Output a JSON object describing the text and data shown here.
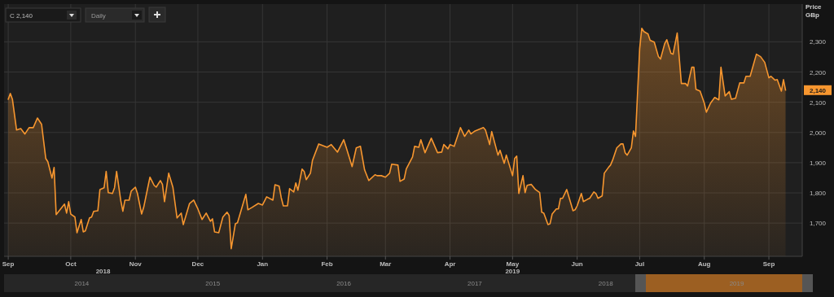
{
  "chart_data": {
    "type": "area",
    "ylabel": "Price GBp",
    "xlim": [
      "2018-08-30",
      "2019-09-17"
    ],
    "xticks": [
      {
        "value": "2018-09-01",
        "label": "Sep"
      },
      {
        "value": "2018-10-01",
        "label": "Oct"
      },
      {
        "value": "2018-11-01",
        "label": "Nov"
      },
      {
        "value": "2018-12-01",
        "label": "Dec"
      },
      {
        "value": "2019-01-01",
        "label": "Jan"
      },
      {
        "value": "2019-02-01",
        "label": "Feb"
      },
      {
        "value": "2019-03-01",
        "label": "Mar"
      },
      {
        "value": "2019-04-01",
        "label": "Apr"
      },
      {
        "value": "2019-05-01",
        "label": "May"
      },
      {
        "value": "2019-06-01",
        "label": "Jun"
      },
      {
        "value": "2019-07-01",
        "label": "Jul"
      },
      {
        "value": "2019-08-01",
        "label": "Aug"
      },
      {
        "value": "2019-09-01",
        "label": "Sep"
      }
    ],
    "ylim": [
      1590,
      2425
    ],
    "yticks": [
      {
        "value": 1700,
        "label": "1,700"
      },
      {
        "value": 1800,
        "label": "1,800"
      },
      {
        "value": 1900,
        "label": "1,900"
      },
      {
        "value": 2000,
        "label": "2,000"
      },
      {
        "value": 2100,
        "label": "2,100"
      },
      {
        "value": 2200,
        "label": "2,200"
      },
      {
        "value": 2300,
        "label": "2,300"
      }
    ],
    "grid": true,
    "annotations": [
      "2018",
      "2019",
      {
        "text": "2,140",
        "y": 2140
      },
      "C 2,140",
      "Daily",
      "2014",
      "2015",
      "2016",
      "2017",
      "2018",
      "2019"
    ],
    "series": [
      {
        "color": "#f7962f",
        "x": [
          "2018-09-01",
          "2018-09-02",
          "2018-09-03",
          "2018-09-05",
          "2018-09-07",
          "2018-09-09",
          "2018-09-11",
          "2018-09-13",
          "2018-09-15",
          "2018-09-17",
          "2018-09-19",
          "2018-09-20",
          "2018-09-22",
          "2018-09-23",
          "2018-09-24",
          "2018-09-28",
          "2018-09-29",
          "2018-09-30",
          "2018-10-01",
          "2018-10-03",
          "2018-10-04",
          "2018-10-06",
          "2018-10-07",
          "2018-10-08",
          "2018-10-10",
          "2018-10-11",
          "2018-10-12",
          "2018-10-14",
          "2018-10-15",
          "2018-10-17",
          "2018-10-18",
          "2018-10-19",
          "2018-10-21",
          "2018-10-22",
          "2018-10-23",
          "2018-10-25",
          "2018-10-26",
          "2018-10-27",
          "2018-10-29",
          "2018-10-30",
          "2018-11-01",
          "2018-11-02",
          "2018-11-04",
          "2018-11-05",
          "2018-11-07",
          "2018-11-08",
          "2018-11-10",
          "2018-11-11",
          "2018-11-13",
          "2018-11-14",
          "2018-11-15",
          "2018-11-17",
          "2018-11-19",
          "2018-11-21",
          "2018-11-23",
          "2018-11-24",
          "2018-11-27",
          "2018-11-29",
          "2018-12-01",
          "2018-12-03",
          "2018-12-05",
          "2018-12-07",
          "2018-12-08",
          "2018-12-09",
          "2018-12-11",
          "2018-12-13",
          "2018-12-15",
          "2018-12-16",
          "2018-12-17",
          "2018-12-19",
          "2018-12-20",
          "2018-12-24",
          "2018-12-25",
          "2018-12-27",
          "2018-12-30",
          "2019-01-01",
          "2019-01-03",
          "2019-01-06",
          "2019-01-07",
          "2019-01-09",
          "2019-01-10",
          "2019-01-11",
          "2019-01-13",
          "2019-01-14",
          "2019-01-16",
          "2019-01-17",
          "2019-01-18",
          "2019-01-20",
          "2019-01-21",
          "2019-01-22",
          "2019-01-24",
          "2019-01-25",
          "2019-01-28",
          "2019-02-01",
          "2019-02-03",
          "2019-02-06",
          "2019-02-09",
          "2019-02-10",
          "2019-02-13",
          "2019-02-15",
          "2019-02-17",
          "2019-02-19",
          "2019-02-21",
          "2019-02-24",
          "2019-02-25",
          "2019-02-27",
          "2019-03-01",
          "2019-03-03",
          "2019-03-04",
          "2019-03-07",
          "2019-03-08",
          "2019-03-10",
          "2019-03-11",
          "2019-03-14",
          "2019-03-15",
          "2019-03-17",
          "2019-03-18",
          "2019-03-20",
          "2019-03-23",
          "2019-03-26",
          "2019-03-28",
          "2019-03-29",
          "2019-03-31",
          "2019-04-01",
          "2019-04-03",
          "2019-04-06",
          "2019-04-08",
          "2019-04-10",
          "2019-04-11",
          "2019-04-13",
          "2019-04-17",
          "2019-04-18",
          "2019-04-20",
          "2019-04-21",
          "2019-04-24",
          "2019-04-25",
          "2019-04-27",
          "2019-04-28",
          "2019-05-01",
          "2019-05-02",
          "2019-05-03",
          "2019-05-04",
          "2019-05-06",
          "2019-05-07",
          "2019-05-08",
          "2019-05-10",
          "2019-05-12",
          "2019-05-14",
          "2019-05-15",
          "2019-05-16",
          "2019-05-18",
          "2019-05-19",
          "2019-05-20",
          "2019-05-22",
          "2019-05-23",
          "2019-05-24",
          "2019-05-25",
          "2019-05-27",
          "2019-05-30",
          "2019-05-31",
          "2019-06-01",
          "2019-06-03",
          "2019-06-04",
          "2019-06-06",
          "2019-06-07",
          "2019-06-09",
          "2019-06-10",
          "2019-06-11",
          "2019-06-13",
          "2019-06-14",
          "2019-06-16",
          "2019-06-17",
          "2019-06-18",
          "2019-06-20",
          "2019-06-22",
          "2019-06-23",
          "2019-06-24",
          "2019-06-25",
          "2019-06-27",
          "2019-06-28",
          "2019-06-29",
          "2019-07-01",
          "2019-07-02",
          "2019-07-03",
          "2019-07-05",
          "2019-07-06",
          "2019-07-08",
          "2019-07-10",
          "2019-07-11",
          "2019-07-13",
          "2019-07-14",
          "2019-07-16",
          "2019-07-17",
          "2019-07-19",
          "2019-07-21",
          "2019-07-23",
          "2019-07-24",
          "2019-07-26",
          "2019-07-27",
          "2019-07-28",
          "2019-07-30",
          "2019-08-01",
          "2019-08-02",
          "2019-08-04",
          "2019-08-06",
          "2019-08-08",
          "2019-08-09",
          "2019-08-11",
          "2019-08-13",
          "2019-08-14",
          "2019-08-16",
          "2019-08-18",
          "2019-08-20",
          "2019-08-21",
          "2019-08-23",
          "2019-08-26",
          "2019-08-28",
          "2019-08-30",
          "2019-09-01",
          "2019-09-02",
          "2019-09-04",
          "2019-09-05",
          "2019-09-07",
          "2019-09-08",
          "2019-09-09"
        ],
        "values": [
          2110,
          2129,
          2110,
          2008,
          2013,
          1995,
          2016,
          2016,
          2048,
          2027,
          1914,
          1903,
          1849,
          1884,
          1728,
          1763,
          1733,
          1771,
          1730,
          1720,
          1668,
          1712,
          1671,
          1674,
          1717,
          1720,
          1739,
          1741,
          1811,
          1817,
          1871,
          1801,
          1798,
          1817,
          1871,
          1774,
          1739,
          1776,
          1776,
          1806,
          1819,
          1798,
          1730,
          1752,
          1819,
          1852,
          1825,
          1819,
          1841,
          1828,
          1771,
          1865,
          1819,
          1717,
          1733,
          1695,
          1765,
          1776,
          1747,
          1712,
          1733,
          1706,
          1714,
          1671,
          1668,
          1720,
          1736,
          1725,
          1615,
          1698,
          1701,
          1795,
          1744,
          1752,
          1765,
          1760,
          1787,
          1776,
          1827,
          1822,
          1784,
          1757,
          1757,
          1814,
          1803,
          1833,
          1809,
          1879,
          1871,
          1844,
          1865,
          1908,
          1962,
          1951,
          1960,
          1935,
          1976,
          1954,
          1887,
          1949,
          1954,
          1876,
          1841,
          1860,
          1857,
          1857,
          1852,
          1865,
          1895,
          1892,
          1838,
          1846,
          1879,
          1919,
          1954,
          1951,
          1976,
          1933,
          1981,
          1933,
          1935,
          1960,
          1946,
          1960,
          1954,
          2016,
          1987,
          2008,
          1995,
          2005,
          2016,
          2008,
          1960,
          2003,
          1925,
          1941,
          1898,
          1925,
          1857,
          1914,
          1922,
          1798,
          1857,
          1801,
          1825,
          1828,
          1811,
          1801,
          1736,
          1733,
          1695,
          1698,
          1730,
          1747,
          1747,
          1782,
          1782,
          1811,
          1741,
          1744,
          1757,
          1798,
          1771,
          1779,
          1782,
          1803,
          1798,
          1782,
          1790,
          1865,
          1884,
          1892,
          1908,
          1949,
          1962,
          1962,
          1933,
          1925,
          1949,
          2005,
          1987,
          2278,
          2345,
          2334,
          2326,
          2305,
          2299,
          2251,
          2243,
          2294,
          2307,
          2262,
          2259,
          2329,
          2162,
          2162,
          2154,
          2216,
          2216,
          2143,
          2137,
          2097,
          2067,
          2097,
          2116,
          2108,
          2216,
          2121,
          2135,
          2110,
          2113,
          2164,
          2164,
          2186,
          2186,
          2259,
          2251,
          2232,
          2181,
          2186,
          2173,
          2175,
          2137,
          2175,
          2140
        ]
      }
    ]
  }
}
